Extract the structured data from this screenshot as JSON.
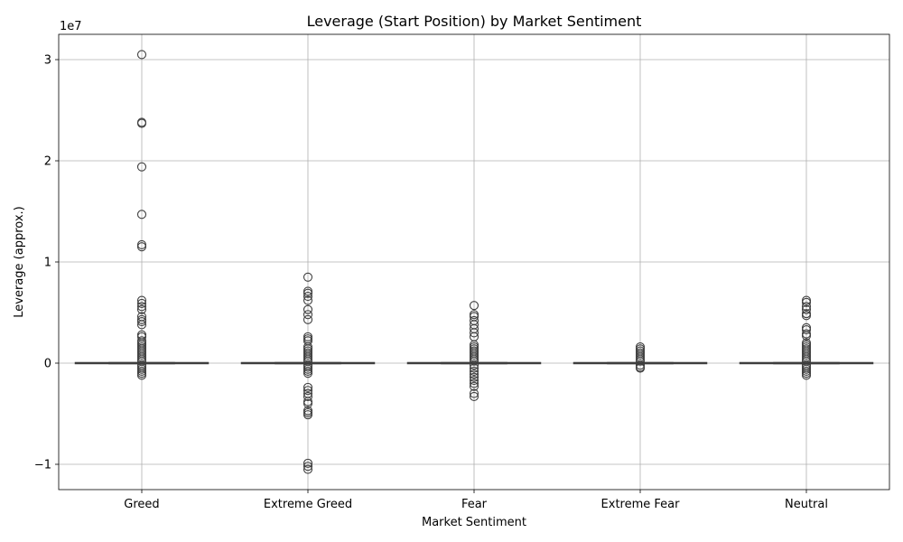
{
  "chart_data": {
    "type": "box",
    "title": "Leverage (Start Position) by Market Sentiment",
    "xlabel": "Market Sentiment",
    "ylabel": "Leverage (approx.)",
    "y_offset_label": "1e7",
    "y_scale": 10000000,
    "ylim": [
      -1.25,
      3.25
    ],
    "yticks": [
      -1,
      0,
      1,
      2,
      3
    ],
    "ytick_labels": [
      "−1",
      "0",
      "1",
      "2",
      "3"
    ],
    "grid": true,
    "colors": {
      "stroke": "#3f3f3f",
      "box_fill": "#ffffff",
      "grid": "#b0b0b0"
    },
    "categories": [
      "Greed",
      "Extreme Greed",
      "Fear",
      "Extreme Fear",
      "Neutral"
    ],
    "boxes": [
      {
        "name": "Greed",
        "q1": -0.002,
        "median": 0.0,
        "q3": 0.002,
        "whisker_low": -0.005,
        "whisker_high": 0.005,
        "outliers": [
          3.05,
          2.38,
          2.37,
          1.94,
          1.47,
          1.17,
          1.15,
          0.62,
          0.59,
          0.56,
          0.53,
          0.46,
          0.43,
          0.41,
          0.38,
          0.28,
          0.26,
          0.22,
          0.2,
          0.18,
          0.16,
          0.14,
          0.12,
          0.1,
          0.08,
          0.06,
          0.04,
          0.02,
          -0.02,
          -0.04,
          -0.06,
          -0.08,
          -0.1,
          -0.12
        ]
      },
      {
        "name": "Extreme Greed",
        "q1": -0.002,
        "median": 0.0,
        "q3": 0.002,
        "whisker_low": -0.005,
        "whisker_high": 0.005,
        "outliers": [
          0.85,
          0.71,
          0.69,
          0.66,
          0.62,
          0.53,
          0.48,
          0.43,
          0.26,
          0.24,
          0.22,
          0.16,
          0.14,
          0.12,
          0.1,
          0.08,
          0.06,
          0.04,
          0.02,
          -0.02,
          -0.04,
          -0.06,
          -0.08,
          -0.1,
          -0.24,
          -0.27,
          -0.3,
          -0.33,
          -0.38,
          -0.4,
          -0.47,
          -0.49,
          -0.51,
          -0.99,
          -1.02,
          -1.05
        ]
      },
      {
        "name": "Fear",
        "q1": -0.002,
        "median": 0.0,
        "q3": 0.002,
        "whisker_low": -0.005,
        "whisker_high": 0.005,
        "outliers": [
          0.57,
          0.48,
          0.46,
          0.42,
          0.38,
          0.34,
          0.3,
          0.26,
          0.18,
          0.16,
          0.14,
          0.12,
          0.1,
          0.08,
          0.06,
          0.04,
          0.02,
          -0.02,
          -0.05,
          -0.08,
          -0.11,
          -0.14,
          -0.17,
          -0.2,
          -0.23,
          -0.3,
          -0.33
        ]
      },
      {
        "name": "Extreme Fear",
        "q1": -0.002,
        "median": 0.0,
        "q3": 0.002,
        "whisker_low": -0.005,
        "whisker_high": 0.005,
        "outliers": [
          0.16,
          0.14,
          0.12,
          0.1,
          0.08,
          0.06,
          0.04,
          0.02,
          -0.02,
          -0.04,
          -0.05
        ]
      },
      {
        "name": "Neutral",
        "q1": -0.002,
        "median": 0.0,
        "q3": 0.002,
        "whisker_low": -0.005,
        "whisker_high": 0.005,
        "outliers": [
          0.62,
          0.6,
          0.56,
          0.53,
          0.49,
          0.47,
          0.35,
          0.33,
          0.29,
          0.27,
          0.2,
          0.18,
          0.16,
          0.14,
          0.12,
          0.1,
          0.08,
          0.06,
          0.04,
          0.02,
          -0.02,
          -0.04,
          -0.06,
          -0.08,
          -0.1,
          -0.12
        ]
      }
    ]
  }
}
